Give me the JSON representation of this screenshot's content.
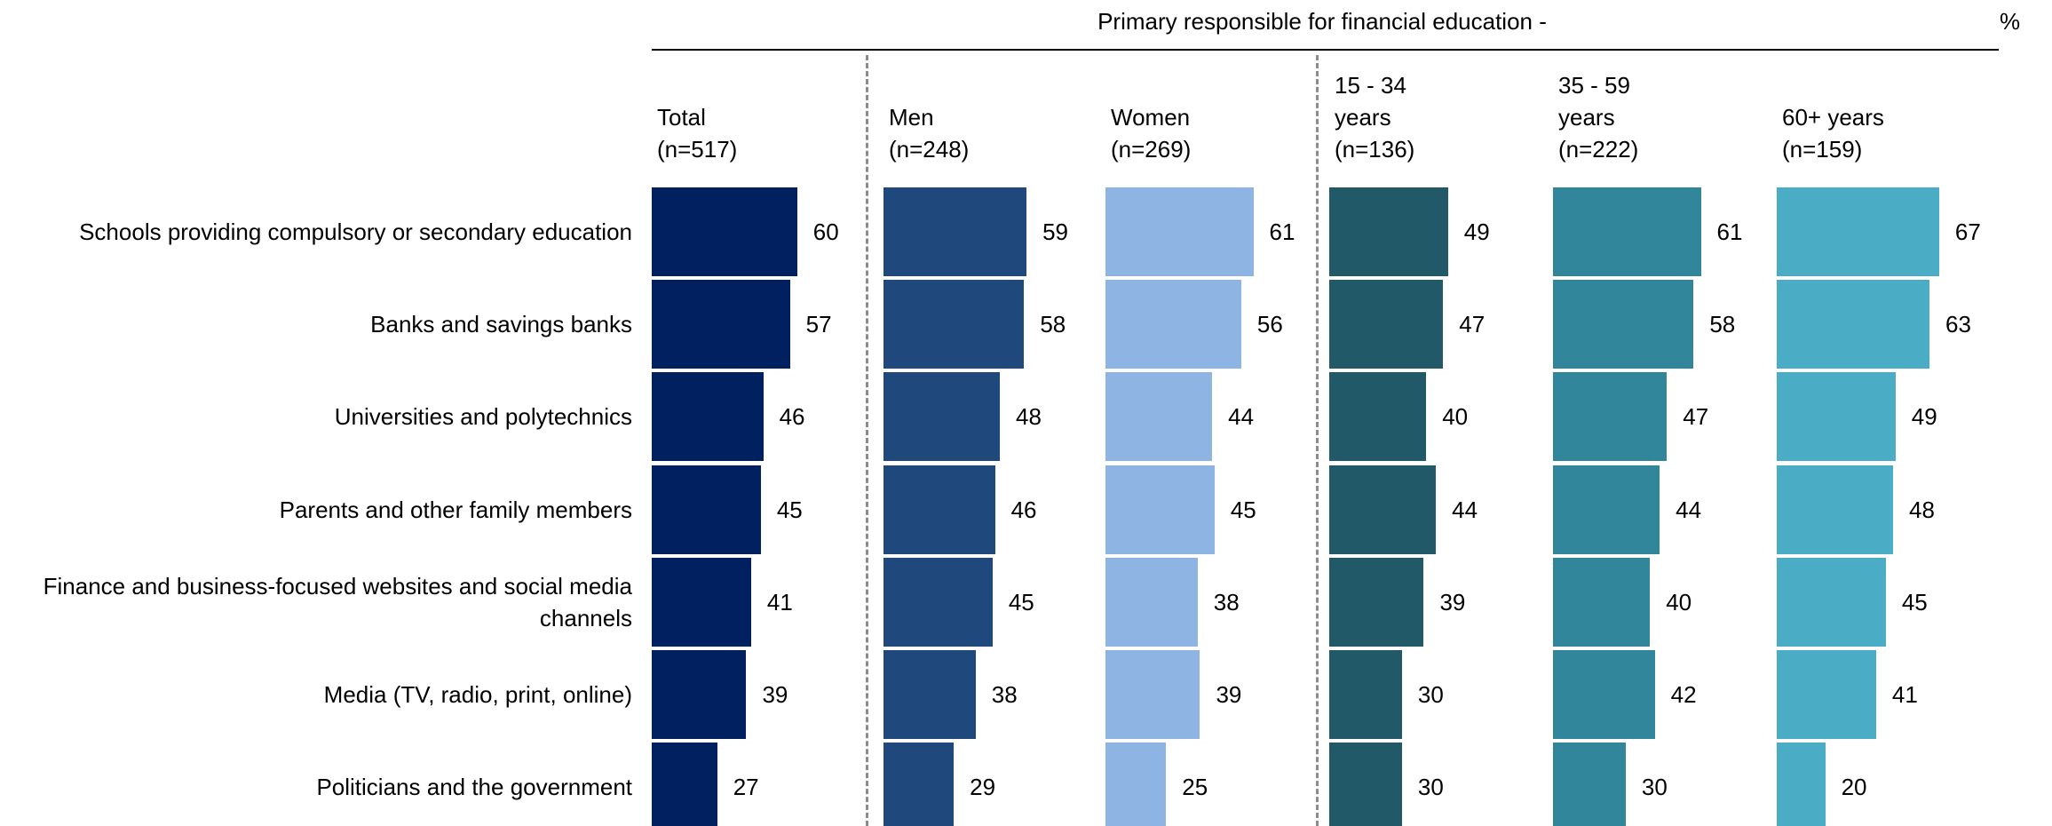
{
  "chart_data": {
    "type": "bar",
    "title": "Primary responsible for financial education -",
    "unit_label": "%",
    "categories": [
      "Schools providing compulsory or secondary education",
      "Banks and savings banks",
      "Universities and polytechnics",
      "Parents and other family members",
      "Finance and business-focused websites and social media channels",
      "Media (TV, radio, print, online)",
      "Politicians and the government"
    ],
    "series": [
      {
        "name": "Total",
        "sample": "(n=517)",
        "color": "#002060",
        "values": [
          60,
          57,
          46,
          45,
          41,
          39,
          27
        ]
      },
      {
        "name": "Men",
        "sample": "(n=248)",
        "color": "#1f497d",
        "values": [
          59,
          58,
          48,
          46,
          45,
          38,
          29
        ]
      },
      {
        "name": "Women",
        "sample": "(n=269)",
        "color": "#8eb4e3",
        "values": [
          61,
          56,
          44,
          45,
          38,
          39,
          25
        ]
      },
      {
        "name": "15 - 34 years",
        "sample": "(n=136)",
        "color": "#215968",
        "values": [
          49,
          47,
          40,
          44,
          39,
          30,
          30
        ]
      },
      {
        "name": "35 - 59 years",
        "sample": "(n=222)",
        "color": "#31869b",
        "values": [
          61,
          58,
          47,
          44,
          40,
          42,
          30
        ]
      },
      {
        "name": "60+ years",
        "sample": "(n=159)",
        "color": "#4bacc6",
        "values": [
          67,
          63,
          49,
          48,
          45,
          41,
          20
        ]
      }
    ]
  }
}
